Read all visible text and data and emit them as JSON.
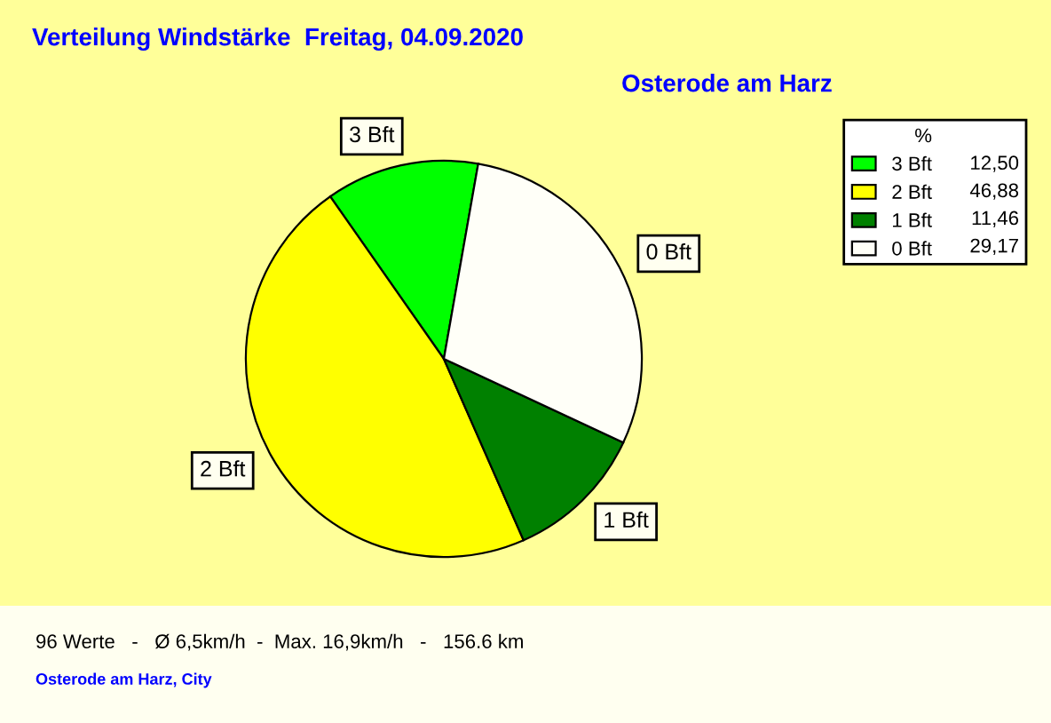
{
  "chart_data": {
    "type": "pie",
    "title": "Verteilung Windstärke  Freitag, 04.09.2020",
    "subtitle": "Osterode am Harz",
    "categories": [
      "3 Bft",
      "2 Bft",
      "1 Bft",
      "0 Bft"
    ],
    "values": [
      12.5,
      46.88,
      11.46,
      29.17
    ],
    "value_labels": [
      "12,50",
      "46,88",
      "11,46",
      "29,17"
    ],
    "colors": [
      "#00ff00",
      "#ffff00",
      "#008000",
      "#fffff8"
    ],
    "legend": "top right",
    "legend_title": "%",
    "annotations": [
      "96 Werte   -   Ø 6,5km/h  -  Max. 16,9km/h   -   156.6 km",
      "Osterode am Harz, City"
    ]
  }
}
